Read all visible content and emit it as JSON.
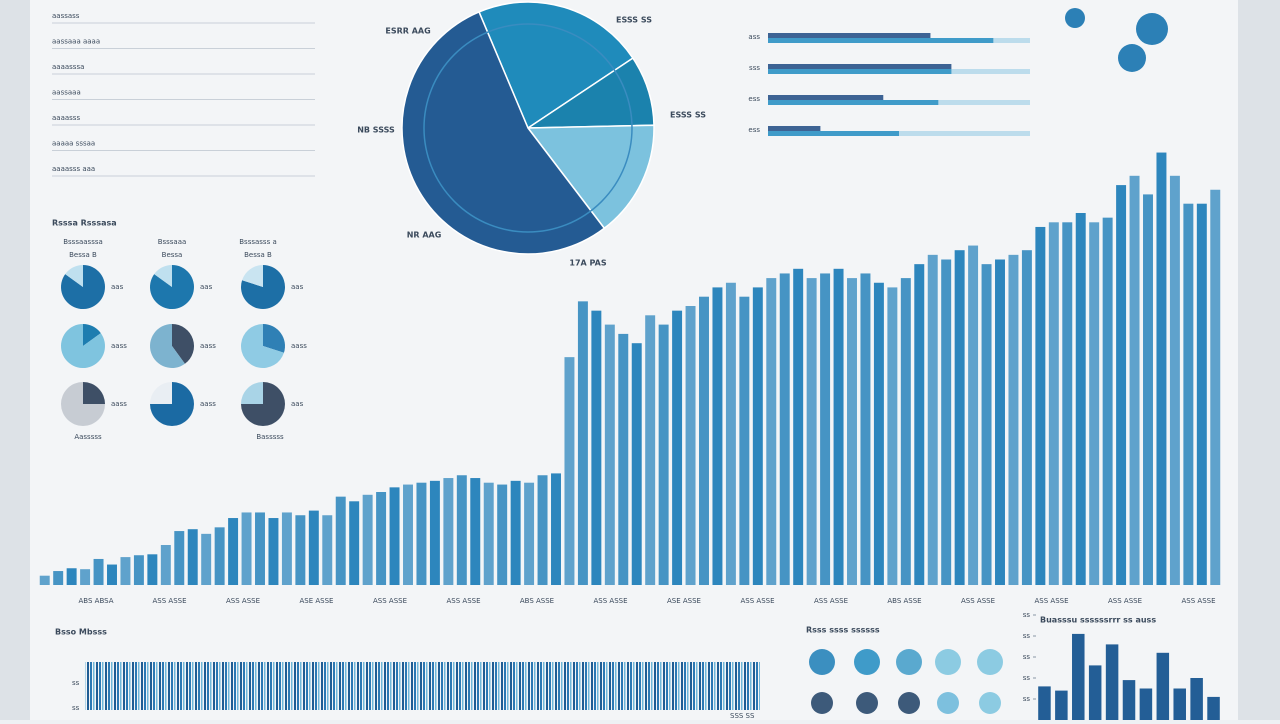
{
  "sidebar": {
    "items": [
      "aassass",
      "aassaaa aaaa",
      "aaaasssa",
      "aassaaa",
      "aaaasss",
      "aaaaa sssaa",
      "aaaasss aaa"
    ]
  },
  "pies_panel": {
    "title": "Rsssa Rsssasa",
    "headers": [
      "Bsssaasssa",
      "Bsssaaa",
      "Bsssasss a"
    ],
    "subheaders": [
      "Bessa B",
      "Bessa",
      "Bessa B"
    ],
    "footers": [
      "Aasssss",
      "Basssss"
    ]
  },
  "barcode_panel": {
    "title": "Bsso Mbsss",
    "axis_labels": [
      "ss",
      "ss"
    ],
    "corner": "SSS SS"
  },
  "circles_panel": {
    "title": "Rsss ssss ssssss"
  },
  "chart_data": [
    {
      "type": "pie",
      "categories": [
        "ESSS SS",
        "ESSS SS",
        "17A PAS",
        "NR AAG"
      ],
      "values": [
        22,
        9,
        15,
        54
      ],
      "colors": [
        "#1f8bbb",
        "#1b82ad",
        "#7cc2de",
        "#245b93"
      ],
      "annotations": [
        "ESRR AAG",
        "NB SSSS"
      ]
    },
    {
      "type": "hbar",
      "categories": [
        "ass",
        "sss",
        "ess",
        "ess"
      ],
      "xlim": [
        0,
        100
      ],
      "series": [
        {
          "name": "A",
          "color": "#3d6394",
          "values": [
            62,
            70,
            44,
            20
          ]
        },
        {
          "name": "B",
          "color": "#3f9bc9",
          "values": [
            86,
            70,
            65,
            50
          ]
        }
      ]
    },
    {
      "type": "bar",
      "color": "#2d86bd",
      "ylim": [
        0,
        500
      ],
      "xlabels": [
        "ABS ABSA",
        "ASS ASSE",
        "ASS ASSE",
        "ASE ASSE",
        "ASS ASSE",
        "ASS ASSE",
        "ABS ASSE",
        "ASS ASSE",
        "ASE ASSE",
        "ASS ASSE",
        "ASS ASSE",
        "ABS ASSE",
        "ASS ASSE",
        "ASS ASSE",
        "ASS ASSE",
        "ASS ASSE"
      ],
      "values": [
        10,
        15,
        18,
        17,
        28,
        22,
        30,
        32,
        33,
        43,
        58,
        60,
        55,
        62,
        72,
        78,
        78,
        72,
        78,
        75,
        80,
        75,
        95,
        90,
        97,
        100,
        105,
        108,
        110,
        112,
        115,
        118,
        115,
        110,
        108,
        112,
        110,
        118,
        120,
        245,
        305,
        295,
        280,
        270,
        260,
        290,
        280,
        295,
        300,
        310,
        320,
        325,
        310,
        320,
        330,
        335,
        340,
        330,
        335,
        340,
        330,
        335,
        325,
        320,
        330,
        345,
        355,
        350,
        360,
        365,
        345,
        350,
        355,
        360,
        385,
        390,
        390,
        400,
        390,
        395,
        430,
        440,
        420,
        465,
        440,
        410,
        410,
        425
      ]
    },
    {
      "type": "bar",
      "title": "Buasssu ssssssrrr ss auss",
      "color": "#235e96",
      "ylim": [
        0,
        100
      ],
      "yticks": [
        {
          "value": 20,
          "label": "ss"
        },
        {
          "value": 40,
          "label": "ss"
        },
        {
          "value": 60,
          "label": "ss"
        },
        {
          "value": 80,
          "label": "ss"
        },
        {
          "value": 100,
          "label": "ss"
        }
      ],
      "values": [
        32,
        28,
        82,
        52,
        72,
        38,
        30,
        64,
        30,
        40,
        22
      ]
    },
    {
      "type": "pies",
      "items": [
        {
          "label": "aas",
          "values": [
            85,
            15
          ],
          "colors": [
            "#1d6fa6",
            "#bfe0ef"
          ]
        },
        {
          "label": "aas",
          "values": [
            85,
            15
          ],
          "colors": [
            "#1d77ad",
            "#bfe0ef"
          ]
        },
        {
          "label": "aas",
          "values": [
            80,
            20
          ],
          "colors": [
            "#1d6fa6",
            "#c9e4f1"
          ]
        },
        {
          "label": "aass",
          "values": [
            15,
            85
          ],
          "colors": [
            "#1d7db0",
            "#7fc4df"
          ]
        },
        {
          "label": "aass",
          "values": [
            40,
            60
          ],
          "colors": [
            "#3e4f66",
            "#7db3cf"
          ]
        },
        {
          "label": "aass",
          "values": [
            30,
            70
          ],
          "colors": [
            "#2f80b5",
            "#8fcbe4"
          ]
        },
        {
          "label": "aass",
          "values": [
            25,
            75
          ],
          "colors": [
            "#3e4f66",
            "#c7ccd3"
          ]
        },
        {
          "label": "aass",
          "values": [
            75,
            25
          ],
          "colors": [
            "#1b6aa3",
            "#e9eef3"
          ]
        },
        {
          "label": "aas",
          "values": [
            75,
            25
          ],
          "colors": [
            "#3e4f66",
            "#a9d4e7"
          ]
        }
      ]
    }
  ]
}
